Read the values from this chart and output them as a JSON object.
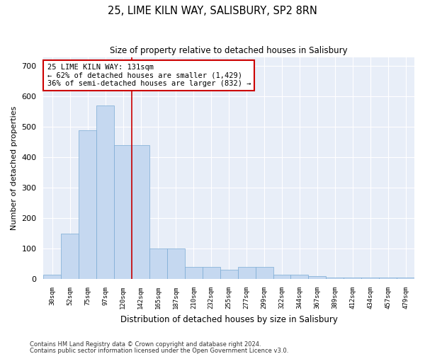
{
  "title": "25, LIME KILN WAY, SALISBURY, SP2 8RN",
  "subtitle": "Size of property relative to detached houses in Salisbury",
  "xlabel": "Distribution of detached houses by size in Salisbury",
  "ylabel": "Number of detached properties",
  "categories": [
    "30sqm",
    "52sqm",
    "75sqm",
    "97sqm",
    "120sqm",
    "142sqm",
    "165sqm",
    "187sqm",
    "210sqm",
    "232sqm",
    "255sqm",
    "277sqm",
    "299sqm",
    "322sqm",
    "344sqm",
    "367sqm",
    "389sqm",
    "412sqm",
    "434sqm",
    "457sqm",
    "479sqm"
  ],
  "values": [
    15,
    150,
    490,
    570,
    440,
    440,
    100,
    100,
    40,
    40,
    30,
    40,
    40,
    15,
    15,
    10,
    5,
    5,
    5,
    5,
    5
  ],
  "bar_color": "#c5d8f0",
  "bar_edgecolor": "#7aaad4",
  "background_color": "#e8eef8",
  "grid_color": "#ffffff",
  "red_line_x": 4.5,
  "annotation_text": "25 LIME KILN WAY: 131sqm\n← 62% of detached houses are smaller (1,429)\n36% of semi-detached houses are larger (832) →",
  "annotation_box_color": "#ffffff",
  "annotation_box_edgecolor": "#cc0000",
  "ylim": [
    0,
    730
  ],
  "yticks": [
    0,
    100,
    200,
    300,
    400,
    500,
    600,
    700
  ],
  "footer_line1": "Contains HM Land Registry data © Crown copyright and database right 2024.",
  "footer_line2": "Contains public sector information licensed under the Open Government Licence v3.0."
}
